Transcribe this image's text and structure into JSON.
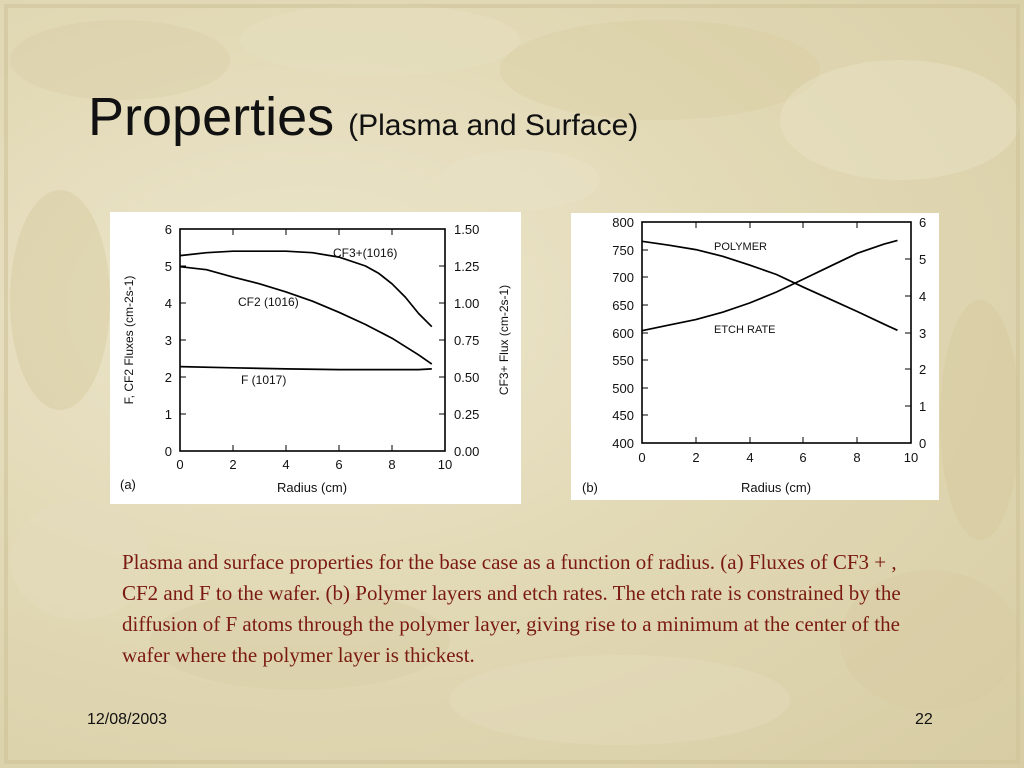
{
  "slide": {
    "title_main": "Properties",
    "title_sub": "(Plasma and Surface)",
    "caption": "Plasma and surface properties for the base case as a function of radius. (a) Fluxes of CF3 + , CF2 and F to the wafer. (b) Polymer layers and etch rates. The etch rate is constrained by the diffusion of F atoms through the polymer layer, giving rise to a minimum at the center of the wafer where the polymer layer is thickest.",
    "date": "12/08/2003",
    "page_number": "22"
  },
  "chart_data": [
    {
      "type": "line",
      "panel_label": "(a)",
      "xlabel": "Radius (cm)",
      "ylabel": "F, CF2 Fluxes (cm-2s-1)",
      "y2label": "CF3+ Flux (cm-2s-1)",
      "xlim": [
        0,
        10
      ],
      "ylim": [
        0,
        6
      ],
      "y2lim": [
        0,
        1.5
      ],
      "x_ticks": [
        "0",
        "2",
        "4",
        "6",
        "8",
        "10"
      ],
      "y_ticks": [
        "0",
        "1",
        "2",
        "3",
        "4",
        "5",
        "6"
      ],
      "y2_ticks": [
        "0.00",
        "0.25",
        "0.50",
        "0.75",
        "1.00",
        "1.25",
        "1.50"
      ],
      "grid": false,
      "series": [
        {
          "name": "CF3+ (10^16)",
          "label_text": "CF3+(1016)",
          "axis": "right",
          "x": [
            0,
            1,
            2,
            3,
            4,
            5,
            6,
            7,
            7.5,
            8,
            8.5,
            9,
            9.5
          ],
          "y": [
            1.32,
            1.34,
            1.35,
            1.35,
            1.35,
            1.34,
            1.31,
            1.25,
            1.2,
            1.13,
            1.04,
            0.93,
            0.84
          ]
        },
        {
          "name": "CF2 (10^16)",
          "label_text": "CF2 (1016)",
          "axis": "left",
          "x": [
            0,
            1,
            2,
            3,
            4,
            5,
            6,
            7,
            8,
            9,
            9.5
          ],
          "y": [
            4.98,
            4.9,
            4.7,
            4.52,
            4.3,
            4.05,
            3.75,
            3.42,
            3.05,
            2.6,
            2.35
          ]
        },
        {
          "name": "F (10^17)",
          "label_text": "F (1017)",
          "axis": "left",
          "x": [
            0,
            2,
            4,
            6,
            8,
            9,
            9.5
          ],
          "y": [
            2.28,
            2.25,
            2.22,
            2.2,
            2.2,
            2.2,
            2.22
          ]
        }
      ]
    },
    {
      "type": "line",
      "panel_label": "(b)",
      "xlabel": "Radius (cm)",
      "xlim": [
        0,
        10
      ],
      "ylim": [
        400,
        800
      ],
      "y2lim": [
        0,
        6
      ],
      "x_ticks": [
        "0",
        "2",
        "4",
        "6",
        "8",
        "10"
      ],
      "y_ticks": [
        "400",
        "450",
        "500",
        "550",
        "600",
        "650",
        "700",
        "750",
        "800"
      ],
      "y2_ticks": [
        "0",
        "1",
        "2",
        "3",
        "4",
        "5",
        "6"
      ],
      "grid": false,
      "series": [
        {
          "name": "POLYMER",
          "label_text": "POLYMER",
          "axis": "left",
          "x": [
            0,
            1,
            2,
            3,
            4,
            5,
            6,
            7,
            8,
            9,
            9.5
          ],
          "y": [
            765,
            758,
            750,
            738,
            722,
            705,
            682,
            660,
            638,
            615,
            604
          ]
        },
        {
          "name": "ETCH RATE",
          "label_text": "ETCH RATE",
          "axis": "right",
          "x": [
            0,
            1,
            2,
            3,
            4,
            5,
            6,
            7,
            8,
            9,
            9.5
          ],
          "y": [
            3.05,
            3.2,
            3.35,
            3.55,
            3.8,
            4.1,
            4.45,
            4.8,
            5.15,
            5.4,
            5.5
          ]
        }
      ]
    }
  ]
}
